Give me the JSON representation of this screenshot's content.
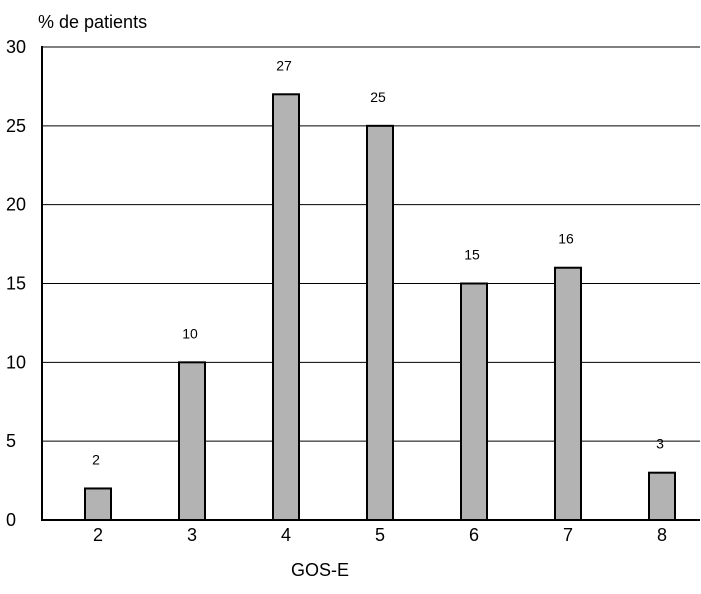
{
  "chart_data": {
    "type": "bar",
    "title": "",
    "xlabel": "GOS-E",
    "ylabel": "% de patients",
    "categories": [
      "2",
      "3",
      "4",
      "5",
      "6",
      "7",
      "8"
    ],
    "values": [
      2,
      10,
      27,
      25,
      15,
      16,
      3
    ],
    "data_labels": [
      "2",
      "10",
      "27",
      "25",
      "15",
      "16",
      "3"
    ],
    "y_ticks": [
      "0",
      "5",
      "10",
      "15",
      "20",
      "25",
      "30"
    ],
    "ylim": [
      0,
      30
    ],
    "grid": true,
    "legend": "none",
    "colors": {
      "bar_fill": "#b3b3b3",
      "bar_stroke": "#000000",
      "grid": "#000000"
    }
  }
}
